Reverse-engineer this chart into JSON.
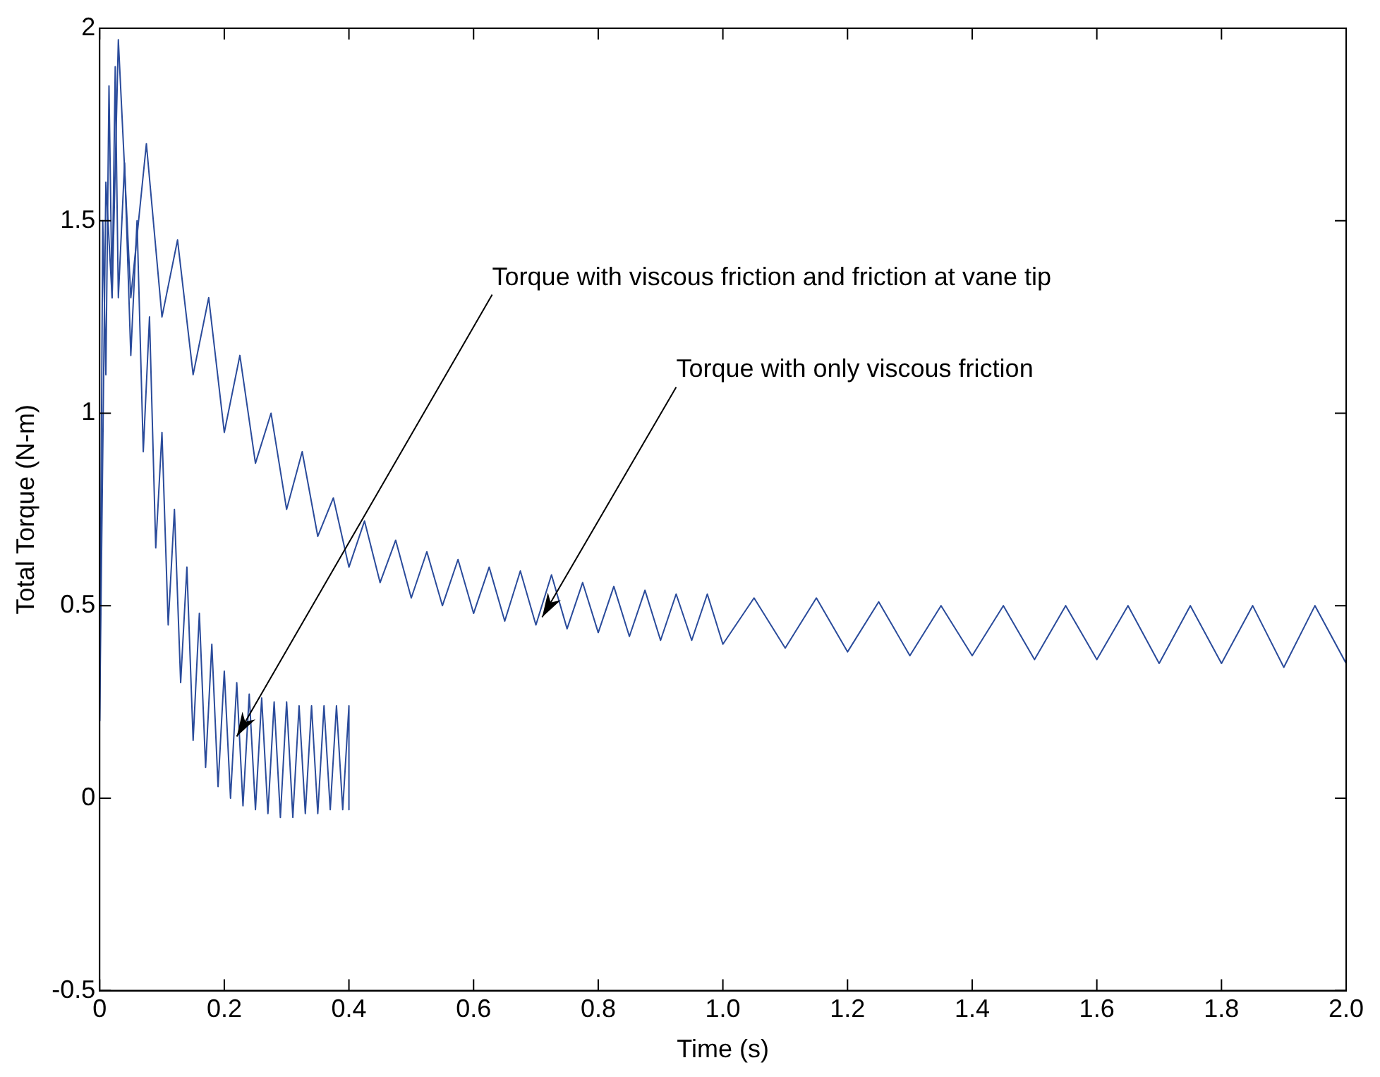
{
  "chart_data": {
    "type": "line",
    "xlabel": "Time (s)",
    "ylabel": "Total Torque (N-m)",
    "xlim": [
      0,
      2
    ],
    "ylim": [
      -0.5,
      2
    ],
    "xticks": [
      0,
      0.2,
      0.4,
      0.6,
      0.8,
      {
        "value": 1,
        "label": "1.0"
      },
      1.2,
      1.4,
      1.6,
      1.8,
      {
        "value": 2,
        "label": "2.0"
      }
    ],
    "yticks": [
      -0.5,
      0,
      0.5,
      1,
      1.5,
      2
    ],
    "grid": false,
    "legend": false,
    "marker": "none",
    "line_style": "solid",
    "series": [
      {
        "color": "#2a4b9b",
        "x": [
          0,
          0.01,
          0.02,
          0.03,
          0.05,
          0.075,
          0.1,
          0.125,
          0.15,
          0.175,
          0.2,
          0.225,
          0.25,
          0.275,
          0.3,
          0.325,
          0.35,
          0.375,
          0.4,
          0.425,
          0.45,
          0.475,
          0.5,
          0.525,
          0.55,
          0.575,
          0.6,
          0.625,
          0.65,
          0.675,
          0.7,
          0.725,
          0.75,
          0.775,
          0.8,
          0.825,
          0.85,
          0.875,
          0.9,
          0.925,
          0.95,
          0.975,
          1.0,
          1.05,
          1.1,
          1.15,
          1.2,
          1.25,
          1.3,
          1.35,
          1.4,
          1.45,
          1.5,
          1.55,
          1.6,
          1.65,
          1.7,
          1.75,
          1.8,
          1.85,
          1.9,
          1.95,
          2.0
        ],
        "values": [
          0.2,
          1.6,
          1.3,
          1.97,
          1.3,
          1.7,
          1.25,
          1.45,
          1.1,
          1.3,
          0.95,
          1.15,
          0.87,
          1.0,
          0.75,
          0.9,
          0.68,
          0.78,
          0.6,
          0.72,
          0.56,
          0.67,
          0.52,
          0.64,
          0.5,
          0.62,
          0.48,
          0.6,
          0.46,
          0.59,
          0.45,
          0.58,
          0.44,
          0.56,
          0.43,
          0.55,
          0.42,
          0.54,
          0.41,
          0.53,
          0.41,
          0.53,
          0.4,
          0.52,
          0.39,
          0.52,
          0.38,
          0.51,
          0.37,
          0.5,
          0.37,
          0.5,
          0.36,
          0.5,
          0.36,
          0.5,
          0.35,
          0.5,
          0.35,
          0.5,
          0.34,
          0.5,
          0.35
        ]
      },
      {
        "color": "#2a4b9b",
        "x": [
          0,
          0.005,
          0.01,
          0.015,
          0.02,
          0.025,
          0.03,
          0.04,
          0.05,
          0.06,
          0.07,
          0.08,
          0.09,
          0.1,
          0.11,
          0.12,
          0.13,
          0.14,
          0.15,
          0.16,
          0.17,
          0.18,
          0.19,
          0.2,
          0.21,
          0.22,
          0.23,
          0.24,
          0.25,
          0.26,
          0.27,
          0.28,
          0.29,
          0.3,
          0.31,
          0.32,
          0.33,
          0.34,
          0.35,
          0.36,
          0.37,
          0.38,
          0.39,
          0.4,
          0.4
        ],
        "values": [
          0.2,
          1.5,
          1.1,
          1.85,
          1.3,
          1.9,
          1.3,
          1.65,
          1.15,
          1.5,
          0.9,
          1.25,
          0.65,
          0.95,
          0.45,
          0.75,
          0.3,
          0.6,
          0.15,
          0.48,
          0.08,
          0.4,
          0.03,
          0.33,
          0.0,
          0.3,
          -0.02,
          0.27,
          -0.03,
          0.26,
          -0.04,
          0.25,
          -0.05,
          0.25,
          -0.05,
          0.24,
          -0.04,
          0.24,
          -0.04,
          0.24,
          -0.03,
          0.24,
          -0.03,
          0.24,
          -0.03
        ]
      }
    ],
    "annotations": [
      {
        "text": "Torque with viscous friction and friction at vane tip",
        "x": 0.22,
        "y": 0.16
      },
      {
        "text": "Torque with only viscous friction",
        "x": 0.71,
        "y": 0.47
      }
    ]
  }
}
